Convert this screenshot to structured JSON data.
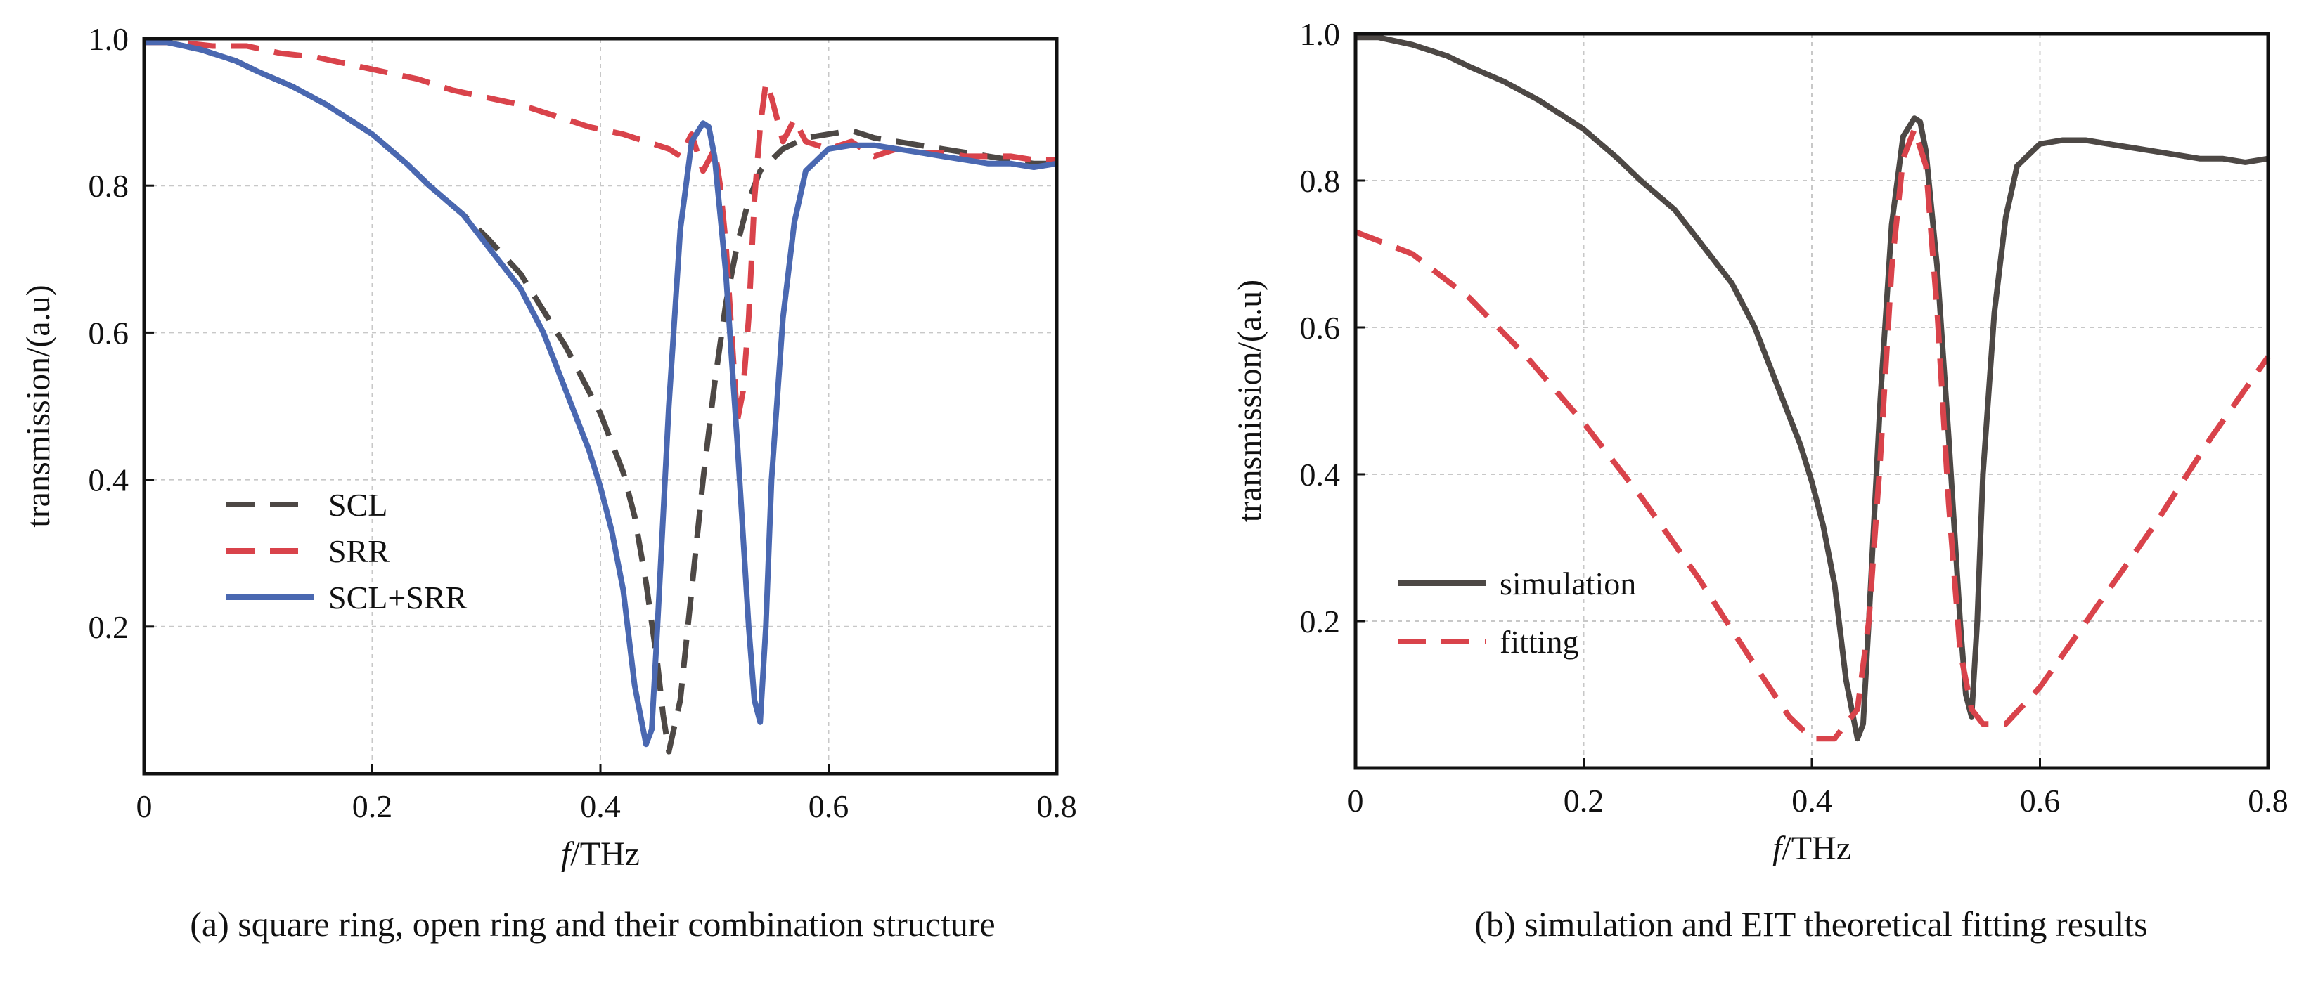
{
  "colors": {
    "scl": "#4d4845",
    "srr": "#d9434b",
    "combo": "#4a68b1",
    "simulation": "#4d4845",
    "fitting": "#d9434b"
  },
  "chart_data": [
    {
      "type": "line",
      "caption": "(a) square ring, open ring and their combination structure",
      "xlabel_italic": "f",
      "xlabel_rest": "/THz",
      "ylabel": "transmission/(a.u)",
      "xlim": [
        0,
        0.8
      ],
      "ylim": [
        0,
        1.0
      ],
      "xticks": [
        0,
        0.2,
        0.4,
        0.6,
        0.8
      ],
      "xtick_labels": [
        "0",
        "0.2",
        "0.4",
        "0.6",
        "0.8"
      ],
      "yticks": [
        0.2,
        0.4,
        0.6,
        0.8,
        1.0
      ],
      "ytick_labels": [
        "0.2",
        "0.4",
        "0.6",
        "0.8",
        "1.0"
      ],
      "grid": true,
      "legend_position": "lower-left",
      "series": [
        {
          "name": "SCL",
          "style": "dashed",
          "color_key": "scl",
          "x": [
            0,
            0.02,
            0.05,
            0.08,
            0.1,
            0.13,
            0.16,
            0.18,
            0.2,
            0.23,
            0.25,
            0.28,
            0.3,
            0.33,
            0.35,
            0.37,
            0.39,
            0.4,
            0.42,
            0.43,
            0.44,
            0.45,
            0.455,
            0.46,
            0.47,
            0.48,
            0.49,
            0.5,
            0.51,
            0.52,
            0.53,
            0.54,
            0.56,
            0.58,
            0.6,
            0.62,
            0.64,
            0.66,
            0.68,
            0.7,
            0.72,
            0.74,
            0.76,
            0.78,
            0.8
          ],
          "y": [
            0.995,
            0.995,
            0.985,
            0.97,
            0.955,
            0.935,
            0.91,
            0.89,
            0.87,
            0.83,
            0.8,
            0.76,
            0.73,
            0.68,
            0.63,
            0.58,
            0.52,
            0.49,
            0.41,
            0.35,
            0.26,
            0.15,
            0.08,
            0.03,
            0.1,
            0.25,
            0.4,
            0.53,
            0.64,
            0.72,
            0.78,
            0.82,
            0.85,
            0.865,
            0.87,
            0.875,
            0.865,
            0.86,
            0.855,
            0.85,
            0.845,
            0.84,
            0.835,
            0.83,
            0.83
          ]
        },
        {
          "name": "SRR",
          "style": "dashed",
          "color_key": "srr",
          "x": [
            0,
            0.03,
            0.06,
            0.09,
            0.12,
            0.15,
            0.18,
            0.21,
            0.24,
            0.27,
            0.3,
            0.33,
            0.36,
            0.39,
            0.42,
            0.44,
            0.46,
            0.47,
            0.48,
            0.49,
            0.5,
            0.505,
            0.51,
            0.515,
            0.52,
            0.525,
            0.53,
            0.535,
            0.54,
            0.545,
            0.55,
            0.56,
            0.57,
            0.58,
            0.6,
            0.62,
            0.64,
            0.66,
            0.68,
            0.7,
            0.72,
            0.74,
            0.76,
            0.78,
            0.8
          ],
          "y": [
            0.995,
            0.995,
            0.99,
            0.99,
            0.98,
            0.975,
            0.965,
            0.955,
            0.945,
            0.93,
            0.92,
            0.91,
            0.895,
            0.88,
            0.87,
            0.86,
            0.85,
            0.84,
            0.87,
            0.82,
            0.85,
            0.8,
            0.72,
            0.6,
            0.48,
            0.52,
            0.62,
            0.78,
            0.88,
            0.94,
            0.92,
            0.86,
            0.89,
            0.86,
            0.85,
            0.86,
            0.84,
            0.85,
            0.845,
            0.845,
            0.84,
            0.84,
            0.84,
            0.835,
            0.835
          ]
        },
        {
          "name": "SCL+SRR",
          "style": "solid",
          "color_key": "combo",
          "x": [
            0,
            0.02,
            0.05,
            0.08,
            0.1,
            0.13,
            0.16,
            0.18,
            0.2,
            0.23,
            0.25,
            0.28,
            0.3,
            0.33,
            0.35,
            0.37,
            0.39,
            0.4,
            0.41,
            0.42,
            0.43,
            0.44,
            0.445,
            0.45,
            0.46,
            0.47,
            0.48,
            0.49,
            0.495,
            0.5,
            0.51,
            0.52,
            0.53,
            0.535,
            0.54,
            0.545,
            0.55,
            0.56,
            0.57,
            0.58,
            0.6,
            0.62,
            0.64,
            0.66,
            0.68,
            0.7,
            0.72,
            0.74,
            0.76,
            0.78,
            0.8
          ],
          "y": [
            0.995,
            0.995,
            0.985,
            0.97,
            0.955,
            0.935,
            0.91,
            0.89,
            0.87,
            0.83,
            0.8,
            0.76,
            0.72,
            0.66,
            0.6,
            0.52,
            0.44,
            0.39,
            0.33,
            0.25,
            0.12,
            0.04,
            0.06,
            0.2,
            0.5,
            0.74,
            0.86,
            0.885,
            0.88,
            0.84,
            0.68,
            0.45,
            0.2,
            0.1,
            0.07,
            0.2,
            0.4,
            0.62,
            0.75,
            0.82,
            0.85,
            0.855,
            0.855,
            0.85,
            0.845,
            0.84,
            0.835,
            0.83,
            0.83,
            0.825,
            0.83
          ]
        }
      ]
    },
    {
      "type": "line",
      "caption": "(b) simulation and EIT theoretical fitting results",
      "xlabel_italic": "f",
      "xlabel_rest": "/THz",
      "ylabel": "transmission/(a.u)",
      "xlim": [
        0,
        0.8
      ],
      "ylim": [
        0,
        1.0
      ],
      "xticks": [
        0,
        0.2,
        0.4,
        0.6,
        0.8
      ],
      "xtick_labels": [
        "0",
        "0.2",
        "0.4",
        "0.6",
        "0.8"
      ],
      "yticks": [
        0.2,
        0.4,
        0.6,
        0.8,
        1.0
      ],
      "ytick_labels": [
        "0.2",
        "0.4",
        "0.6",
        "0.8",
        "1.0"
      ],
      "grid": true,
      "legend_position": "lower-left",
      "series": [
        {
          "name": "simulation",
          "style": "solid",
          "color_key": "simulation",
          "x": [
            0,
            0.02,
            0.05,
            0.08,
            0.1,
            0.13,
            0.16,
            0.18,
            0.2,
            0.23,
            0.25,
            0.28,
            0.3,
            0.33,
            0.35,
            0.37,
            0.39,
            0.4,
            0.41,
            0.42,
            0.43,
            0.44,
            0.445,
            0.45,
            0.46,
            0.47,
            0.48,
            0.49,
            0.495,
            0.5,
            0.51,
            0.52,
            0.53,
            0.535,
            0.54,
            0.545,
            0.55,
            0.56,
            0.57,
            0.58,
            0.6,
            0.62,
            0.64,
            0.66,
            0.68,
            0.7,
            0.72,
            0.74,
            0.76,
            0.78,
            0.8
          ],
          "y": [
            0.995,
            0.995,
            0.985,
            0.97,
            0.955,
            0.935,
            0.91,
            0.89,
            0.87,
            0.83,
            0.8,
            0.76,
            0.72,
            0.66,
            0.6,
            0.52,
            0.44,
            0.39,
            0.33,
            0.25,
            0.12,
            0.04,
            0.06,
            0.2,
            0.5,
            0.74,
            0.86,
            0.885,
            0.88,
            0.84,
            0.68,
            0.45,
            0.2,
            0.1,
            0.07,
            0.2,
            0.4,
            0.62,
            0.75,
            0.82,
            0.85,
            0.855,
            0.855,
            0.85,
            0.845,
            0.84,
            0.835,
            0.83,
            0.83,
            0.825,
            0.83
          ]
        },
        {
          "name": "fitting",
          "style": "dashed",
          "color_key": "fitting",
          "x": [
            0,
            0.05,
            0.1,
            0.15,
            0.2,
            0.25,
            0.3,
            0.35,
            0.38,
            0.4,
            0.42,
            0.44,
            0.45,
            0.46,
            0.47,
            0.48,
            0.49,
            0.5,
            0.51,
            0.52,
            0.53,
            0.54,
            0.55,
            0.57,
            0.6,
            0.65,
            0.7,
            0.75,
            0.8
          ],
          "y": [
            0.73,
            0.7,
            0.64,
            0.56,
            0.47,
            0.37,
            0.26,
            0.14,
            0.07,
            0.04,
            0.04,
            0.08,
            0.2,
            0.42,
            0.68,
            0.83,
            0.87,
            0.82,
            0.62,
            0.36,
            0.16,
            0.08,
            0.06,
            0.06,
            0.11,
            0.22,
            0.33,
            0.45,
            0.56
          ]
        }
      ]
    }
  ]
}
